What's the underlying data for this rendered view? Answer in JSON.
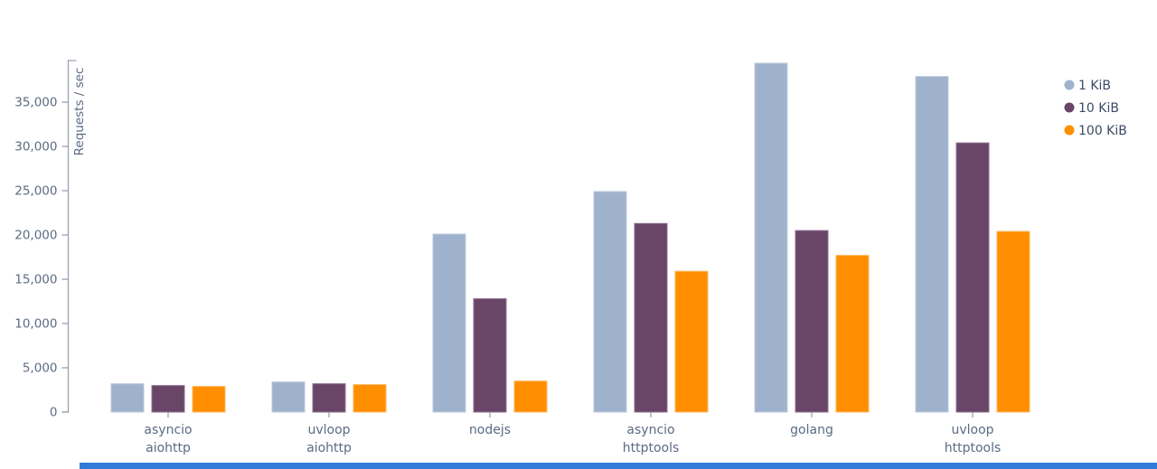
{
  "chart_data": {
    "type": "bar",
    "title": "",
    "xlabel": "",
    "ylabel": "Requests / sec",
    "categories": [
      [
        "asyncio",
        "aiohttp"
      ],
      [
        "uvloop",
        "aiohttp"
      ],
      [
        "nodejs"
      ],
      [
        "asyncio",
        "httptools"
      ],
      [
        "golang"
      ],
      [
        "uvloop",
        "httptools"
      ]
    ],
    "series": [
      {
        "name": "1 KiB",
        "color": "#9fb2cd",
        "border": "#bcc8db",
        "values": [
          3200,
          3400,
          20100,
          24900,
          39400,
          37900
        ]
      },
      {
        "name": "10 KiB",
        "color": "#694667",
        "border": "#8f6f92",
        "values": [
          3000,
          3200,
          12800,
          21300,
          20500,
          30400
        ]
      },
      {
        "name": "100 KiB",
        "color": "#ff8e00",
        "border": "#ffb75e",
        "values": [
          2900,
          3100,
          3500,
          15900,
          17700,
          20400
        ]
      }
    ],
    "yticks": [
      [
        0,
        "0"
      ],
      [
        5000,
        "5,000"
      ],
      [
        10000,
        "10,000"
      ],
      [
        15000,
        "15,000"
      ],
      [
        20000,
        "20,000"
      ],
      [
        25000,
        "25,000"
      ],
      [
        30000,
        "30,000"
      ],
      [
        35000,
        "35,000"
      ]
    ],
    "ylim": [
      0,
      39700
    ],
    "grid": false,
    "legend_position": "top-right",
    "axis_color": "#9aa2b0",
    "tick_label_color": "#5b6b84",
    "legend_text_color": "#3c4b64"
  },
  "footer": {
    "strip_color": "#2e7cd6"
  }
}
